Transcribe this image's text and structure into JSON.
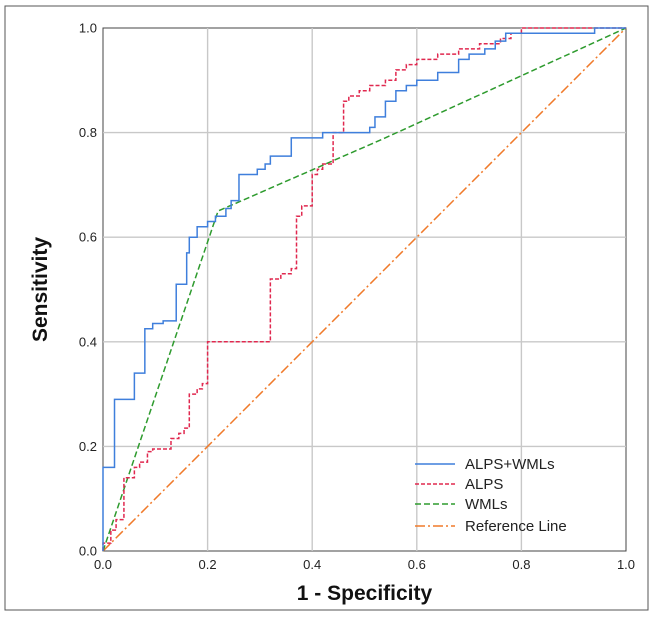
{
  "chart_data": {
    "type": "line",
    "title": "",
    "xlabel": "1 - Specificity",
    "ylabel": "Sensitivity",
    "xlim": [
      0,
      1
    ],
    "ylim": [
      0,
      1
    ],
    "x_ticks": [
      "0.0",
      "0.2",
      "0.4",
      "0.6",
      "0.8",
      "1.0"
    ],
    "y_ticks": [
      "0.0",
      "0.2",
      "0.4",
      "0.6",
      "0.8",
      "1.0"
    ],
    "grid": true,
    "legend_position": "bottom-right",
    "series": [
      {
        "name": "ALPS+WMLs",
        "color": "#3f7fdc",
        "dash": "solid",
        "step": true,
        "points": [
          [
            0.0,
            0.0
          ],
          [
            0.0,
            0.16
          ],
          [
            0.022,
            0.16
          ],
          [
            0.022,
            0.29
          ],
          [
            0.06,
            0.29
          ],
          [
            0.06,
            0.34
          ],
          [
            0.08,
            0.34
          ],
          [
            0.08,
            0.425
          ],
          [
            0.095,
            0.425
          ],
          [
            0.095,
            0.435
          ],
          [
            0.115,
            0.435
          ],
          [
            0.115,
            0.44
          ],
          [
            0.14,
            0.44
          ],
          [
            0.14,
            0.51
          ],
          [
            0.16,
            0.51
          ],
          [
            0.16,
            0.57
          ],
          [
            0.165,
            0.57
          ],
          [
            0.165,
            0.6
          ],
          [
            0.18,
            0.6
          ],
          [
            0.18,
            0.62
          ],
          [
            0.2,
            0.62
          ],
          [
            0.2,
            0.63
          ],
          [
            0.215,
            0.63
          ],
          [
            0.215,
            0.64
          ],
          [
            0.235,
            0.64
          ],
          [
            0.235,
            0.655
          ],
          [
            0.245,
            0.655
          ],
          [
            0.245,
            0.67
          ],
          [
            0.26,
            0.67
          ],
          [
            0.26,
            0.72
          ],
          [
            0.295,
            0.72
          ],
          [
            0.295,
            0.73
          ],
          [
            0.31,
            0.73
          ],
          [
            0.31,
            0.74
          ],
          [
            0.32,
            0.74
          ],
          [
            0.32,
            0.755
          ],
          [
            0.36,
            0.755
          ],
          [
            0.36,
            0.79
          ],
          [
            0.42,
            0.79
          ],
          [
            0.42,
            0.8
          ],
          [
            0.51,
            0.8
          ],
          [
            0.51,
            0.81
          ],
          [
            0.52,
            0.81
          ],
          [
            0.52,
            0.83
          ],
          [
            0.54,
            0.83
          ],
          [
            0.54,
            0.86
          ],
          [
            0.56,
            0.86
          ],
          [
            0.56,
            0.88
          ],
          [
            0.58,
            0.88
          ],
          [
            0.58,
            0.89
          ],
          [
            0.6,
            0.89
          ],
          [
            0.6,
            0.9
          ],
          [
            0.64,
            0.9
          ],
          [
            0.64,
            0.915
          ],
          [
            0.68,
            0.915
          ],
          [
            0.68,
            0.94
          ],
          [
            0.7,
            0.94
          ],
          [
            0.7,
            0.95
          ],
          [
            0.73,
            0.95
          ],
          [
            0.73,
            0.96
          ],
          [
            0.75,
            0.96
          ],
          [
            0.75,
            0.975
          ],
          [
            0.77,
            0.975
          ],
          [
            0.77,
            0.99
          ],
          [
            0.94,
            0.99
          ],
          [
            0.94,
            1.0
          ],
          [
            1.0,
            1.0
          ]
        ]
      },
      {
        "name": "ALPS",
        "color": "#e0284f",
        "dash": "dashed",
        "step": true,
        "points": [
          [
            0.0,
            0.0
          ],
          [
            0.0,
            0.015
          ],
          [
            0.015,
            0.015
          ],
          [
            0.015,
            0.04
          ],
          [
            0.025,
            0.04
          ],
          [
            0.025,
            0.06
          ],
          [
            0.04,
            0.06
          ],
          [
            0.04,
            0.14
          ],
          [
            0.06,
            0.14
          ],
          [
            0.06,
            0.16
          ],
          [
            0.07,
            0.16
          ],
          [
            0.07,
            0.17
          ],
          [
            0.085,
            0.17
          ],
          [
            0.085,
            0.19
          ],
          [
            0.095,
            0.19
          ],
          [
            0.095,
            0.195
          ],
          [
            0.13,
            0.195
          ],
          [
            0.13,
            0.215
          ],
          [
            0.145,
            0.215
          ],
          [
            0.145,
            0.225
          ],
          [
            0.155,
            0.225
          ],
          [
            0.155,
            0.235
          ],
          [
            0.165,
            0.235
          ],
          [
            0.165,
            0.3
          ],
          [
            0.18,
            0.3
          ],
          [
            0.18,
            0.31
          ],
          [
            0.19,
            0.31
          ],
          [
            0.19,
            0.32
          ],
          [
            0.2,
            0.32
          ],
          [
            0.2,
            0.4
          ],
          [
            0.32,
            0.4
          ],
          [
            0.32,
            0.52
          ],
          [
            0.34,
            0.52
          ],
          [
            0.34,
            0.53
          ],
          [
            0.36,
            0.53
          ],
          [
            0.36,
            0.54
          ],
          [
            0.37,
            0.54
          ],
          [
            0.37,
            0.64
          ],
          [
            0.38,
            0.64
          ],
          [
            0.38,
            0.66
          ],
          [
            0.4,
            0.66
          ],
          [
            0.4,
            0.72
          ],
          [
            0.41,
            0.72
          ],
          [
            0.41,
            0.73
          ],
          [
            0.42,
            0.73
          ],
          [
            0.42,
            0.74
          ],
          [
            0.44,
            0.74
          ],
          [
            0.44,
            0.8
          ],
          [
            0.46,
            0.8
          ],
          [
            0.46,
            0.86
          ],
          [
            0.47,
            0.86
          ],
          [
            0.47,
            0.87
          ],
          [
            0.49,
            0.87
          ],
          [
            0.49,
            0.88
          ],
          [
            0.51,
            0.88
          ],
          [
            0.51,
            0.89
          ],
          [
            0.54,
            0.89
          ],
          [
            0.54,
            0.9
          ],
          [
            0.56,
            0.9
          ],
          [
            0.56,
            0.92
          ],
          [
            0.58,
            0.92
          ],
          [
            0.58,
            0.93
          ],
          [
            0.6,
            0.93
          ],
          [
            0.6,
            0.94
          ],
          [
            0.64,
            0.94
          ],
          [
            0.64,
            0.95
          ],
          [
            0.68,
            0.95
          ],
          [
            0.68,
            0.96
          ],
          [
            0.72,
            0.96
          ],
          [
            0.72,
            0.97
          ],
          [
            0.76,
            0.97
          ],
          [
            0.76,
            0.98
          ],
          [
            0.78,
            0.98
          ],
          [
            0.78,
            0.99
          ],
          [
            0.8,
            0.99
          ],
          [
            0.8,
            1.0
          ],
          [
            1.0,
            1.0
          ]
        ]
      },
      {
        "name": "WMLs",
        "color": "#2e9b2e",
        "dash": "dashed",
        "step": false,
        "points": [
          [
            0.0,
            0.0
          ],
          [
            0.22,
            0.65
          ],
          [
            0.54,
            0.79
          ],
          [
            1.0,
            1.0
          ]
        ]
      },
      {
        "name": "Reference Line",
        "color": "#f07a2a",
        "dash": "dash-dot",
        "step": false,
        "points": [
          [
            0.0,
            0.0
          ],
          [
            1.0,
            1.0
          ]
        ]
      }
    ]
  }
}
